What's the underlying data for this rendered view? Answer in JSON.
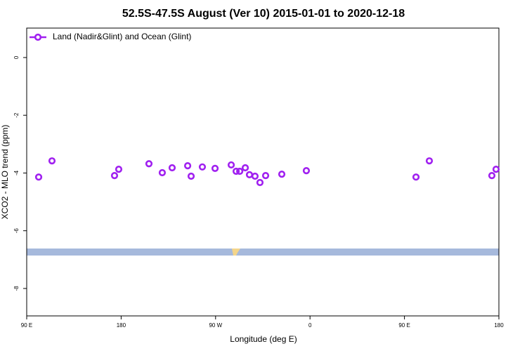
{
  "chart_data": {
    "type": "scatter",
    "title": "52.5S-47.5S August (Ver 10)   2015-01-01 to 2020-12-18",
    "x_label": "Longitude (deg E)",
    "y_label": "XCO2 - MLO trend (ppm)",
    "xlim": [
      90,
      540
    ],
    "ylim": [
      -8.95,
      1.02
    ],
    "xticks": [
      {
        "value": 90,
        "label": "90 E"
      },
      180,
      {
        "value": 270,
        "label": "90 W"
      },
      {
        "value": 360,
        "label": "0"
      },
      {
        "value": 450,
        "label": "90 E"
      },
      {
        "value": 540,
        "label": "180"
      }
    ],
    "yticks": [
      0,
      -2,
      -4,
      -6,
      -8
    ],
    "legend": "top-left",
    "series": [
      {
        "name": "Land (Nadir&Glint) and Ocean (Glint)",
        "color": "#a020f0",
        "x": [
          101.4,
          114.1,
          173.7,
          177.7,
          206.5,
          219.2,
          228.6,
          243.4,
          246.7,
          257.4,
          269.5,
          284.9,
          289.6,
          293.0,
          298.3,
          302.3,
          307.6,
          312.3,
          317.7,
          333.1,
          356.5,
          461.0,
          473.7,
          533.3,
          537.3
        ],
        "values": [
          -4.14,
          -3.58,
          -4.09,
          -3.87,
          -3.68,
          -3.99,
          -3.82,
          -3.75,
          -4.11,
          -3.79,
          -3.84,
          -3.72,
          -3.94,
          -3.94,
          -3.82,
          -4.06,
          -4.11,
          -4.33,
          -4.09,
          -4.04,
          -3.92,
          -4.14,
          -3.58,
          -4.09,
          -3.87
        ]
      }
    ]
  }
}
